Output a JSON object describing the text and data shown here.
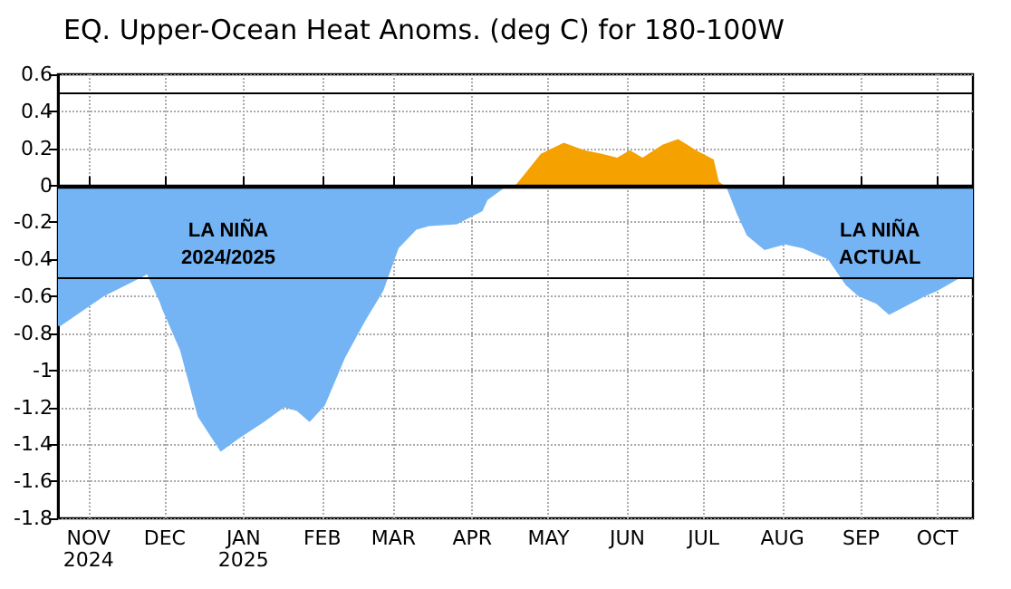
{
  "chart_data": {
    "type": "area",
    "title": "EQ. Upper-Ocean Heat Anoms. (deg C) for 180-100W",
    "xlim": [
      "2024-10-20",
      "2025-10-15"
    ],
    "xticks": [
      {
        "value": "2024-11-01",
        "label": "NOV\n2024"
      },
      {
        "value": "2024-12-01",
        "label": "DEC"
      },
      {
        "value": "2025-01-01",
        "label": "JAN\n2025"
      },
      {
        "value": "2025-02-01",
        "label": "FEB"
      },
      {
        "value": "2025-03-01",
        "label": "MAR"
      },
      {
        "value": "2025-04-01",
        "label": "APR"
      },
      {
        "value": "2025-05-01",
        "label": "MAY"
      },
      {
        "value": "2025-06-01",
        "label": "JUN"
      },
      {
        "value": "2025-07-01",
        "label": "JUL"
      },
      {
        "value": "2025-08-01",
        "label": "AUG"
      },
      {
        "value": "2025-09-01",
        "label": "SEP"
      },
      {
        "value": "2025-10-01",
        "label": "OCT"
      }
    ],
    "ylim": [
      -1.8,
      0.6
    ],
    "yticks": [
      -1.8,
      -1.6,
      -1.4,
      -1.2,
      -1,
      -0.8,
      -0.6,
      -0.4,
      -0.2,
      0,
      0.2,
      0.4,
      0.6
    ],
    "grid": true,
    "line_style": "dotted",
    "series": [
      {
        "color": "#74b4f4",
        "x": [
          "2024-10-20",
          "2024-10-21",
          "2024-11-07",
          "2024-11-23",
          "2024-11-24",
          "2024-11-29",
          "2024-11-30",
          "2024-12-07",
          "2024-12-14",
          "2024-12-23",
          "2024-12-30",
          "2025-01-09",
          "2025-01-17",
          "2025-01-22",
          "2025-01-27",
          "2025-02-02",
          "2025-02-10",
          "2025-02-18",
          "2025-02-25",
          "2025-03-03",
          "2025-03-10",
          "2025-03-15",
          "2025-03-26",
          "2025-04-05",
          "2025-04-07",
          "2025-04-14",
          "2025-04-16",
          "2025-06-01",
          "2025-07-10",
          "2025-07-14",
          "2025-07-18",
          "2025-07-25",
          "2025-08-02",
          "2025-08-09",
          "2025-08-19",
          "2025-08-26",
          "2025-08-31",
          "2025-09-07",
          "2025-09-12",
          "2025-09-19",
          "2025-09-26",
          "2025-10-01",
          "2025-10-10",
          "2025-10-15"
        ],
        "values": [
          -0.76,
          -0.76,
          -0.6,
          -0.49,
          -0.48,
          -0.63,
          -0.67,
          -0.89,
          -1.25,
          -1.44,
          -1.37,
          -1.28,
          -1.2,
          -1.22,
          -1.28,
          -1.19,
          -0.93,
          -0.73,
          -0.57,
          -0.34,
          -0.24,
          -0.22,
          -0.21,
          -0.14,
          -0.08,
          -0.01,
          0,
          null,
          -0.01,
          -0.15,
          -0.27,
          -0.35,
          -0.32,
          -0.34,
          -0.4,
          -0.54,
          -0.6,
          -0.64,
          -0.7,
          -0.65,
          -0.6,
          -0.57,
          -0.5,
          -0.5
        ]
      },
      {
        "color": "#f5a100",
        "x": [
          "2025-04-18",
          "2025-04-21",
          "2025-04-28",
          "2025-05-07",
          "2025-05-15",
          "2025-05-22",
          "2025-05-28",
          "2025-06-02",
          "2025-06-07",
          "2025-06-15",
          "2025-06-21",
          "2025-06-28",
          "2025-07-05",
          "2025-07-07",
          "2025-07-09"
        ],
        "values": [
          0,
          0.05,
          0.17,
          0.23,
          0.19,
          0.17,
          0.15,
          0.19,
          0.15,
          0.22,
          0.25,
          0.19,
          0.14,
          0.02,
          0
        ]
      }
    ],
    "ref_lines": [
      {
        "axis": "y",
        "value": 0.5,
        "color": "#000000"
      },
      {
        "axis": "y",
        "value": 0,
        "color": "#000000"
      },
      {
        "axis": "y",
        "value": -0.5,
        "color": "#000000"
      }
    ],
    "annotations": [
      "LA NIÑA\n2024/2025",
      "LA NIÑA\nACTUAL"
    ]
  }
}
